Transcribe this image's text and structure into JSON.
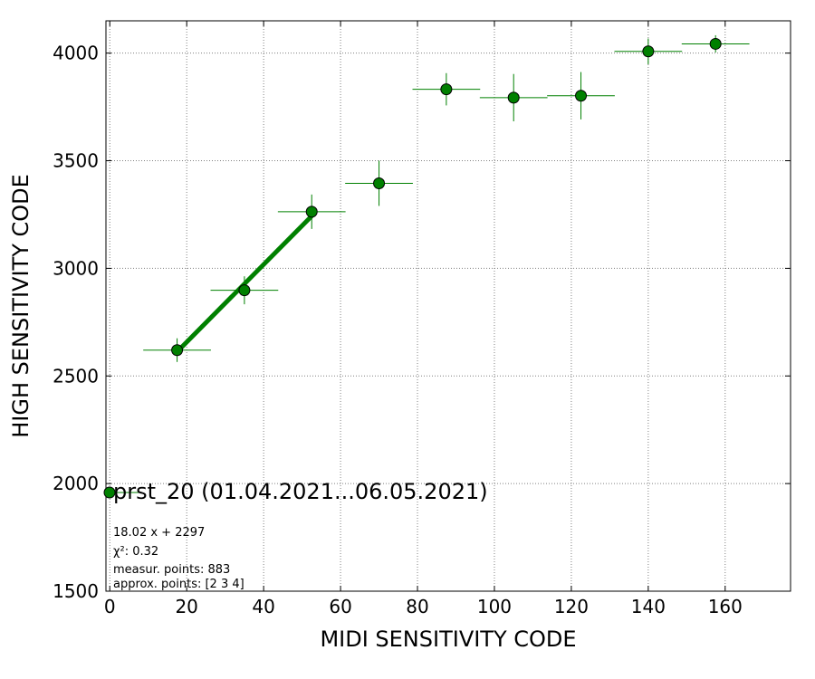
{
  "chart_data": {
    "type": "scatter",
    "xlabel": "MIDI SENSITIVITY CODE",
    "ylabel": "HIGH SENSITIVITY CODE",
    "xlim": [
      -1,
      177
    ],
    "ylim": [
      1500,
      4150
    ],
    "xticks": [
      0,
      20,
      40,
      60,
      80,
      100,
      120,
      140,
      160
    ],
    "yticks": [
      1500,
      2000,
      2500,
      3000,
      3500,
      4000
    ],
    "xtick_labels": [
      "0",
      "20",
      "40",
      "60",
      "80",
      "100",
      "120",
      "140",
      "160"
    ],
    "ytick_labels": [
      "1500",
      "2000",
      "2500",
      "3000",
      "3500",
      "4000"
    ],
    "grid": true,
    "color": "#008000",
    "series": [
      {
        "name": "prst_20 (01.04.2021...06.05.2021)",
        "points": [
          {
            "x": 17.5,
            "y": 2620,
            "xerr": 8.8,
            "yerr": 55
          },
          {
            "x": 35.0,
            "y": 2898,
            "xerr": 8.8,
            "yerr": 65
          },
          {
            "x": 52.5,
            "y": 3263,
            "xerr": 8.8,
            "yerr": 80
          },
          {
            "x": 70.0,
            "y": 3395,
            "xerr": 8.8,
            "yerr": 105
          },
          {
            "x": 87.5,
            "y": 3832,
            "xerr": 8.8,
            "yerr": 75
          },
          {
            "x": 105.0,
            "y": 3793,
            "xerr": 8.8,
            "yerr": 110
          },
          {
            "x": 122.5,
            "y": 3802,
            "xerr": 8.8,
            "yerr": 110
          },
          {
            "x": 140.0,
            "y": 4008,
            "xerr": 8.8,
            "yerr": 60
          },
          {
            "x": 157.5,
            "y": 4043,
            "xerr": 8.8,
            "yerr": 40
          }
        ]
      }
    ],
    "fit": {
      "slope": 18.02,
      "intercept": 2297,
      "x_range": [
        17.5,
        52.5
      ]
    },
    "legend": {
      "label": "prst_20 (01.04.2021...06.05.2021)",
      "placement": "lower-left"
    },
    "annotations": [
      "18.02 x + 2297",
      "χ²: 0.32",
      "measur. points: 883",
      "approx. points: [2 3 4]"
    ]
  }
}
